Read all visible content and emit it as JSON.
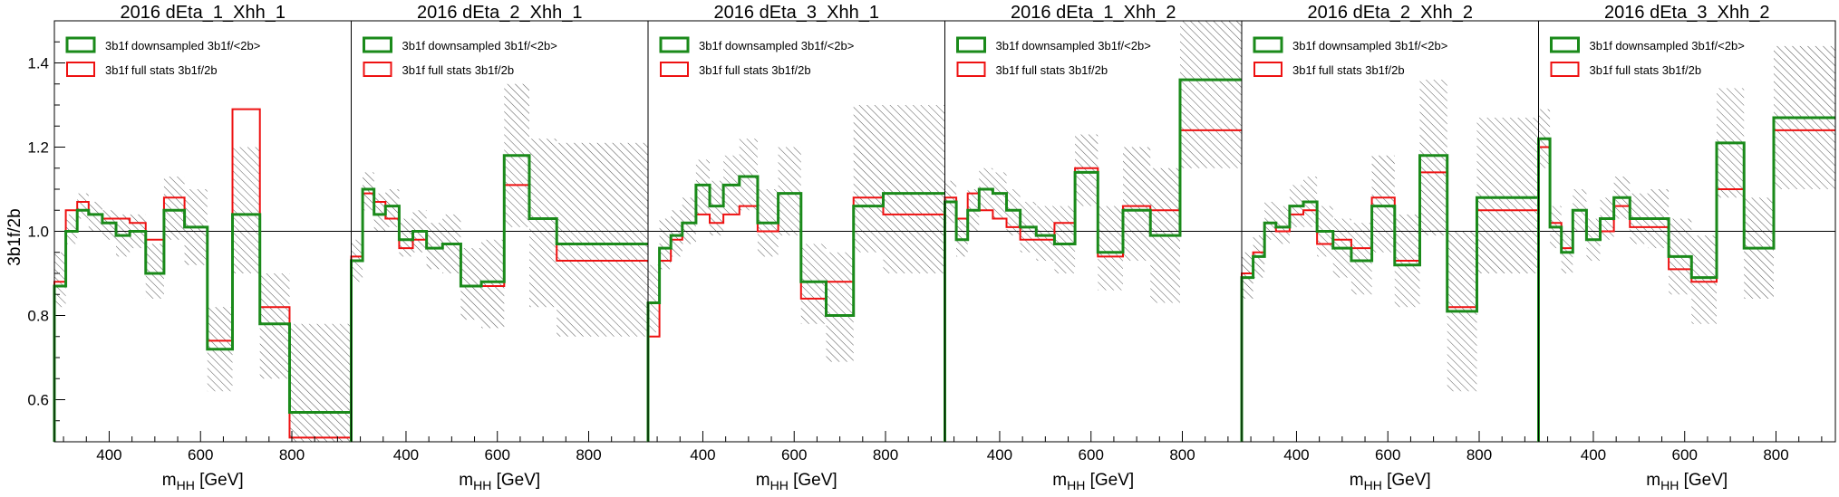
{
  "chart_data": {
    "type": "line",
    "ylabel": "3b1f/2b",
    "ylim": [
      0.5,
      1.5
    ],
    "yticks": [
      0.6,
      0.8,
      1.0,
      1.2,
      1.4
    ],
    "ytick_labels": [
      "0.6",
      "0.8",
      "1.0",
      "1.2",
      "1.4"
    ],
    "xlim": [
      280,
      930
    ],
    "xticks": [
      400,
      600,
      800
    ],
    "xtick_labels": [
      "400",
      "600",
      "800"
    ],
    "xlabel_main": "m",
    "xlabel_sub": "HH",
    "xlabel_unit": "[GeV]",
    "reference_line": 1.0,
    "legend_position": "top-left",
    "legend": [
      {
        "label": "3b1f downsampled 3b1f/<2b>",
        "color": "#1a8a1a"
      },
      {
        "label": "3b1f full stats 3b1f/2b",
        "color": "#ee1111"
      }
    ],
    "uncertainty_style": "gray hatched band",
    "bin_edges": [
      280,
      305,
      330,
      355,
      385,
      415,
      445,
      480,
      520,
      565,
      615,
      670,
      730,
      795,
      865,
      930
    ],
    "panels": [
      {
        "title": "2016 dEta_1_Xhh_1",
        "series": [
          {
            "name": "3b1f downsampled 3b1f/<2b>",
            "values": [
              0.87,
              1.0,
              1.05,
              1.04,
              1.02,
              0.99,
              1.0,
              0.9,
              1.05,
              1.01,
              0.72,
              1.04,
              0.78,
              0.57,
              0.57
            ]
          },
          {
            "name": "3b1f full stats 3b1f/2b",
            "values": [
              0.88,
              1.05,
              1.07,
              1.04,
              1.03,
              1.03,
              1.02,
              0.98,
              1.08,
              1.01,
              0.74,
              1.29,
              0.82,
              0.51,
              0.51
            ]
          }
        ],
        "band": [
          [
            0.82,
            0.95
          ],
          [
            0.97,
            1.04
          ],
          [
            1.03,
            1.09
          ],
          [
            1.0,
            1.07
          ],
          [
            0.98,
            1.05
          ],
          [
            0.94,
            1.04
          ],
          [
            0.96,
            1.04
          ],
          [
            0.84,
            0.97
          ],
          [
            0.98,
            1.13
          ],
          [
            0.92,
            1.1
          ],
          [
            0.62,
            0.82
          ],
          [
            0.9,
            1.2
          ],
          [
            0.65,
            0.9
          ],
          [
            0.48,
            0.78
          ],
          [
            0.48,
            0.78
          ]
        ]
      },
      {
        "title": "2016 dEta_2_Xhh_1",
        "series": [
          {
            "name": "3b1f downsampled 3b1f/<2b>",
            "values": [
              0.93,
              1.1,
              1.04,
              1.06,
              0.98,
              1.0,
              0.96,
              0.97,
              0.87,
              0.88,
              1.18,
              1.03,
              0.97,
              0.97,
              0.97
            ]
          },
          {
            "name": "3b1f full stats 3b1f/2b",
            "values": [
              0.94,
              1.09,
              1.07,
              1.03,
              0.96,
              0.98,
              0.96,
              0.97,
              0.87,
              0.87,
              1.11,
              1.03,
              0.93,
              0.93,
              0.93
            ]
          }
        ],
        "band": [
          [
            0.88,
            0.98
          ],
          [
            1.05,
            1.14
          ],
          [
            1.0,
            1.09
          ],
          [
            1.01,
            1.1
          ],
          [
            0.94,
            1.03
          ],
          [
            0.95,
            1.05
          ],
          [
            0.91,
            1.02
          ],
          [
            0.9,
            1.04
          ],
          [
            0.79,
            0.96
          ],
          [
            0.77,
            0.98
          ],
          [
            1.01,
            1.35
          ],
          [
            0.82,
            1.22
          ],
          [
            0.75,
            1.21
          ],
          [
            0.75,
            1.21
          ],
          [
            0.75,
            1.21
          ]
        ]
      },
      {
        "title": "2016 dEta_3_Xhh_1",
        "series": [
          {
            "name": "3b1f downsampled 3b1f/<2b>",
            "values": [
              0.83,
              0.96,
              0.99,
              1.02,
              1.11,
              1.06,
              1.11,
              1.13,
              1.02,
              1.09,
              0.88,
              0.8,
              1.06,
              1.09,
              1.09
            ]
          },
          {
            "name": "3b1f full stats 3b1f/2b",
            "values": [
              0.75,
              0.93,
              0.98,
              1.02,
              1.04,
              1.02,
              1.04,
              1.06,
              1.0,
              1.09,
              0.84,
              0.88,
              1.08,
              1.04,
              1.04
            ]
          }
        ],
        "band": [
          [
            0.76,
            0.92
          ],
          [
            0.91,
            1.03
          ],
          [
            0.94,
            1.05
          ],
          [
            0.97,
            1.08
          ],
          [
            1.04,
            1.17
          ],
          [
            0.99,
            1.12
          ],
          [
            1.04,
            1.18
          ],
          [
            1.05,
            1.22
          ],
          [
            0.94,
            1.1
          ],
          [
            0.99,
            1.2
          ],
          [
            0.78,
            0.97
          ],
          [
            0.69,
            0.95
          ],
          [
            0.95,
            1.3
          ],
          [
            0.9,
            1.3
          ],
          [
            0.9,
            1.3
          ]
        ]
      },
      {
        "title": "2016 dEta_1_Xhh_2",
        "series": [
          {
            "name": "3b1f downsampled 3b1f/<2b>",
            "values": [
              1.07,
              0.98,
              1.05,
              1.1,
              1.09,
              1.05,
              1.01,
              0.99,
              0.97,
              1.14,
              0.95,
              1.05,
              0.99,
              1.36,
              1.36
            ]
          },
          {
            "name": "3b1f full stats 3b1f/2b",
            "values": [
              1.08,
              1.03,
              1.09,
              1.05,
              1.03,
              1.01,
              0.98,
              0.98,
              1.02,
              1.15,
              0.94,
              1.06,
              1.05,
              1.24,
              1.24
            ]
          }
        ],
        "band": [
          [
            1.02,
            1.12
          ],
          [
            0.94,
            1.03
          ],
          [
            1.0,
            1.1
          ],
          [
            1.05,
            1.15
          ],
          [
            1.03,
            1.14
          ],
          [
            0.99,
            1.1
          ],
          [
            0.95,
            1.07
          ],
          [
            0.93,
            1.06
          ],
          [
            0.9,
            1.06
          ],
          [
            1.06,
            1.23
          ],
          [
            0.86,
            1.06
          ],
          [
            0.93,
            1.2
          ],
          [
            0.83,
            1.15
          ],
          [
            1.15,
            1.5
          ],
          [
            1.15,
            1.5
          ]
        ]
      },
      {
        "title": "2016 dEta_2_Xhh_2",
        "series": [
          {
            "name": "3b1f downsampled 3b1f/<2b>",
            "values": [
              0.89,
              0.94,
              1.02,
              1.01,
              1.06,
              1.07,
              1.0,
              0.96,
              0.93,
              1.06,
              0.92,
              1.18,
              0.81,
              1.08,
              1.08
            ]
          },
          {
            "name": "3b1f full stats 3b1f/2b",
            "values": [
              0.9,
              0.95,
              1.02,
              1.0,
              1.04,
              1.05,
              0.97,
              0.98,
              0.96,
              1.08,
              0.93,
              1.14,
              0.82,
              1.05,
              1.05
            ]
          }
        ],
        "band": [
          [
            0.84,
            0.95
          ],
          [
            0.89,
            0.99
          ],
          [
            0.98,
            1.07
          ],
          [
            0.97,
            1.06
          ],
          [
            1.01,
            1.11
          ],
          [
            1.01,
            1.13
          ],
          [
            0.94,
            1.06
          ],
          [
            0.89,
            1.03
          ],
          [
            0.85,
            1.02
          ],
          [
            0.95,
            1.18
          ],
          [
            0.82,
            1.04
          ],
          [
            0.99,
            1.36
          ],
          [
            0.62,
            1.0
          ],
          [
            0.9,
            1.27
          ],
          [
            0.9,
            1.27
          ]
        ]
      },
      {
        "title": "2016 dEta_3_Xhh_2",
        "series": [
          {
            "name": "3b1f downsampled 3b1f/<2b>",
            "values": [
              1.22,
              1.01,
              0.95,
              1.05,
              0.98,
              1.03,
              1.08,
              1.03,
              1.03,
              0.94,
              0.89,
              1.21,
              0.96,
              1.27,
              1.27
            ]
          },
          {
            "name": "3b1f full stats 3b1f/2b",
            "values": [
              1.2,
              1.02,
              0.96,
              1.05,
              0.98,
              1.0,
              1.06,
              1.01,
              1.01,
              0.91,
              0.88,
              1.1,
              0.96,
              1.24,
              1.24
            ]
          }
        ],
        "band": [
          [
            1.15,
            1.29
          ],
          [
            0.96,
            1.06
          ],
          [
            0.9,
            1.0
          ],
          [
            1.0,
            1.1
          ],
          [
            0.93,
            1.03
          ],
          [
            0.98,
            1.08
          ],
          [
            1.03,
            1.13
          ],
          [
            0.97,
            1.09
          ],
          [
            0.96,
            1.1
          ],
          [
            0.85,
            1.03
          ],
          [
            0.78,
            0.99
          ],
          [
            1.08,
            1.34
          ],
          [
            0.84,
            1.08
          ],
          [
            1.1,
            1.44
          ],
          [
            1.1,
            1.44
          ]
        ]
      }
    ]
  }
}
